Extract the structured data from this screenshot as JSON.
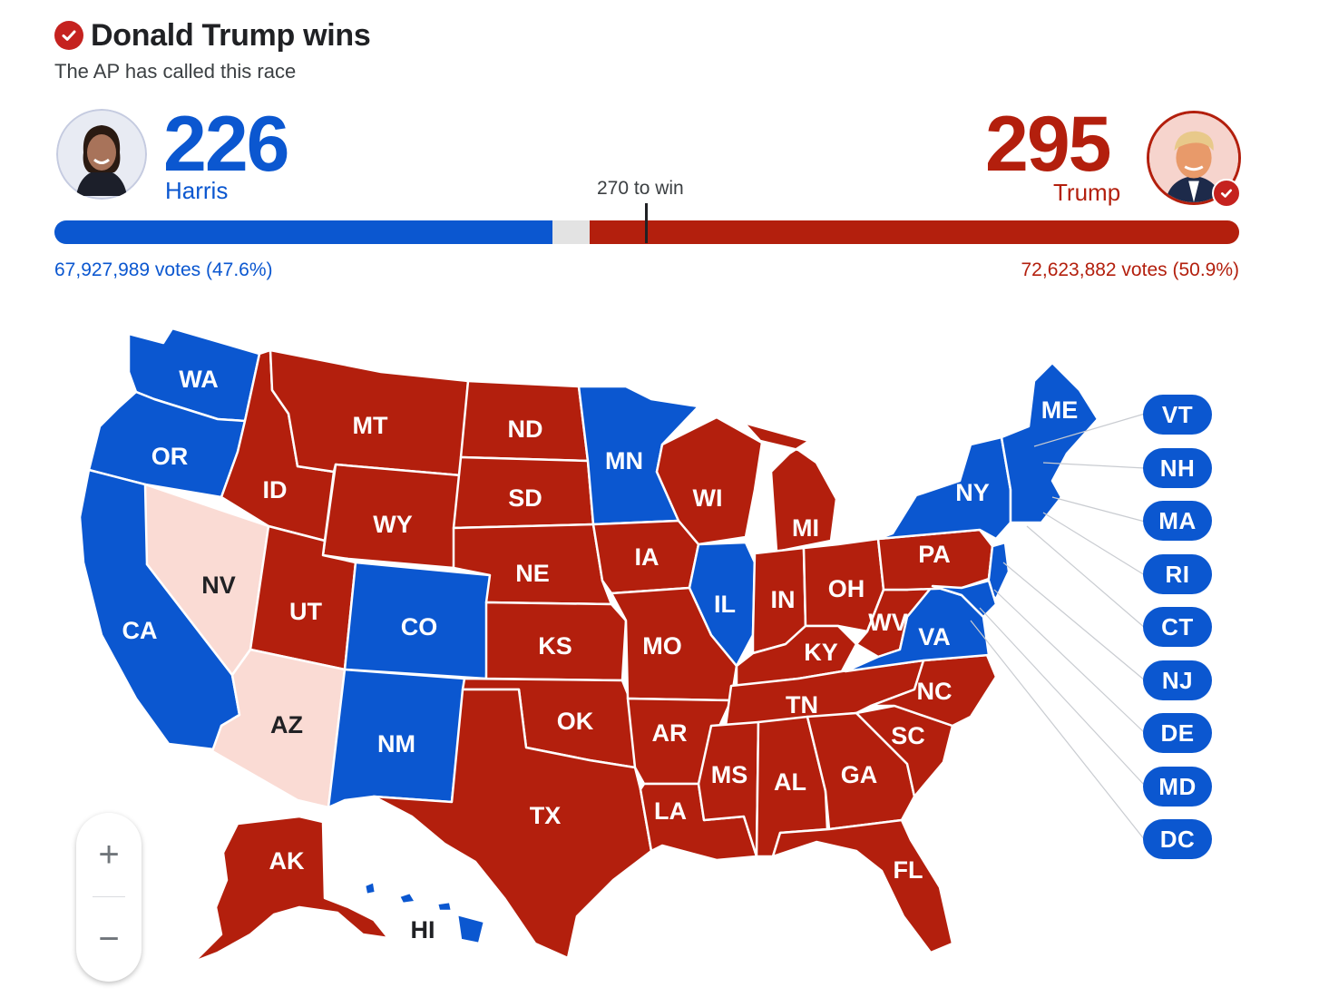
{
  "header": {
    "winner_title": "Donald Trump wins",
    "called_text": "The AP has called this race"
  },
  "harris": {
    "name": "Harris",
    "electoral_votes": "226",
    "popular_votes": "67,927,989 votes (47.6%)",
    "color": "#0b57d0",
    "ev_share": 0.42
  },
  "trump": {
    "name": "Trump",
    "electoral_votes": "295",
    "popular_votes": "72,623,882 votes (50.9%)",
    "color": "#b31f0d",
    "ev_share": 0.548
  },
  "threshold_label": "270 to win",
  "map": {
    "state_labels": [
      "WA",
      "OR",
      "CA",
      "ID",
      "NV",
      "MT",
      "WY",
      "UT",
      "AZ",
      "CO",
      "NM",
      "ND",
      "SD",
      "NE",
      "KS",
      "OK",
      "TX",
      "MN",
      "IA",
      "MO",
      "AR",
      "LA",
      "WI",
      "IL",
      "MI",
      "IN",
      "KY",
      "TN",
      "MS",
      "AL",
      "OH",
      "WV",
      "VA",
      "PA",
      "NY",
      "ME",
      "NC",
      "SC",
      "GA",
      "FL",
      "AK",
      "HI"
    ],
    "small_state_pills": [
      "VT",
      "NH",
      "MA",
      "RI",
      "CT",
      "NJ",
      "DE",
      "MD",
      "DC"
    ],
    "colors": {
      "dem": "#0b57d0",
      "rep": "#b31f0d",
      "rep_lean": "#fadbd4"
    }
  },
  "zoom": {
    "plus": "+",
    "minus": "−"
  }
}
